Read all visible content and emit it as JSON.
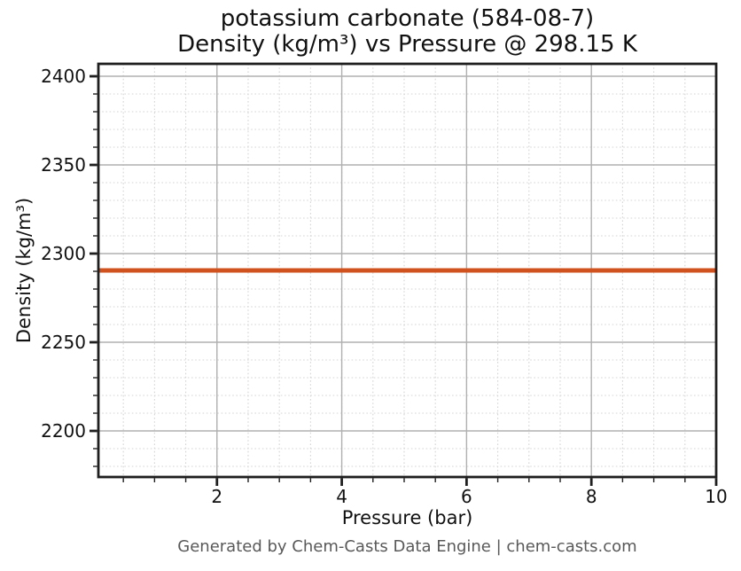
{
  "page": {
    "background": "#ffffff"
  },
  "chart_data": {
    "type": "line",
    "title_line1": "potassium carbonate (584-08-7)",
    "title_line2": "Density (kg/m³) vs Pressure @ 298.15 K",
    "xlabel": "Pressure (bar)",
    "ylabel": "Density (kg/m³)",
    "footer": "Generated by Chem-Casts Data Engine | chem-casts.com",
    "xlim": [
      0.1,
      10
    ],
    "ylim": [
      2174,
      2407
    ],
    "x_ticks": [
      2,
      4,
      6,
      8,
      10
    ],
    "y_ticks": [
      2200,
      2250,
      2300,
      2350,
      2400
    ],
    "x_minor_step": 0.5,
    "y_minor_step": 10,
    "grid": {
      "major_color": "#b0b0b0",
      "minor_color": "#d4d4d4"
    },
    "axis_color": "#1f1f1f",
    "tick_label_color": "#111111",
    "series": [
      {
        "name": "density",
        "x": [
          0.1,
          1,
          2,
          3,
          4,
          5,
          6,
          7,
          8,
          9,
          10
        ],
        "y": [
          2290.5,
          2290.5,
          2290.5,
          2290.5,
          2290.5,
          2290.5,
          2290.5,
          2290.5,
          2290.5,
          2290.5,
          2290.5
        ],
        "color": "#d0521e",
        "linewidth": 5
      }
    ],
    "legend": "none"
  }
}
